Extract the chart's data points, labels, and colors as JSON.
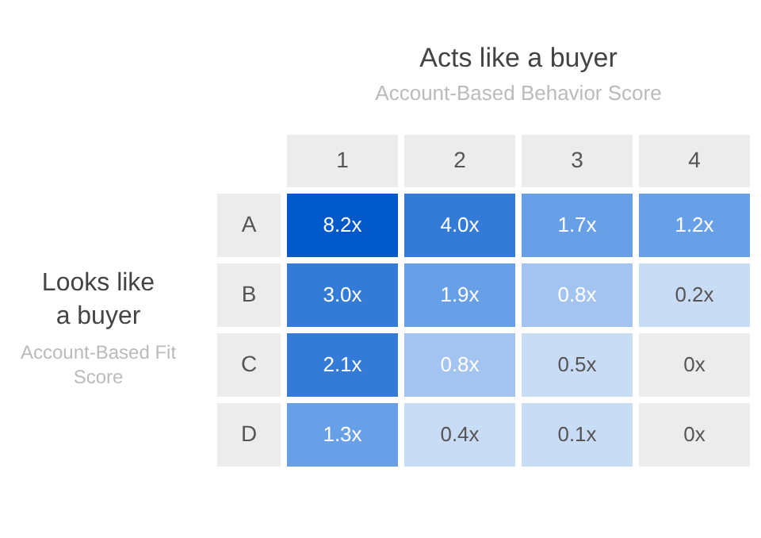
{
  "chart_data": {
    "type": "heatmap",
    "title": "Acts like a buyer",
    "subtitle": "Account-Based Behavior Score",
    "ylabel": "Looks like a buyer",
    "annotations": [
      "Account-Based Fit Score"
    ],
    "categories": [
      "1",
      "2",
      "3",
      "4"
    ],
    "y_categories": [
      "A",
      "B",
      "C",
      "D"
    ],
    "cells": [
      [
        8.2,
        4.0,
        1.7,
        1.2
      ],
      [
        3.0,
        1.9,
        0.8,
        0.2
      ],
      [
        2.1,
        0.8,
        0.5,
        0
      ],
      [
        1.3,
        0.4,
        0.1,
        0
      ]
    ],
    "cell_labels": [
      [
        "8.2x",
        "4.0x",
        "1.7x",
        "1.2x"
      ],
      [
        "3.0x",
        "1.9x",
        "0.8x",
        "0.2x"
      ],
      [
        "2.1x",
        "0.8x",
        "0.5x",
        "0x"
      ],
      [
        "1.3x",
        "0.4x",
        "0.1x",
        "0x"
      ]
    ],
    "colors": [
      [
        "#0058c9",
        "#337bd6",
        "#68a0e8",
        "#68a0e8"
      ],
      [
        "#337bd6",
        "#68a0e8",
        "#a3c3f0",
        "#c9dcf5"
      ],
      [
        "#337bd6",
        "#a3c3f0",
        "#c9dcf5",
        "#ececec"
      ],
      [
        "#68a0e8",
        "#c9dcf5",
        "#c9dcf5",
        "#ececec"
      ]
    ]
  }
}
